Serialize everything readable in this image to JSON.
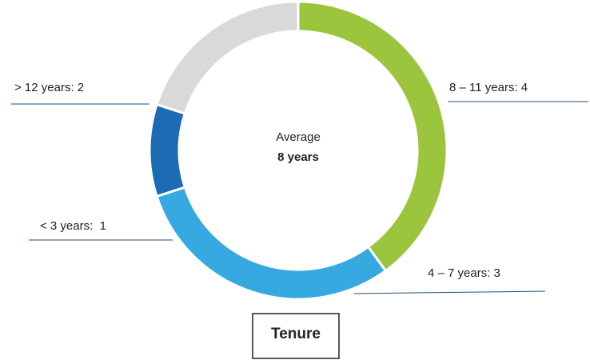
{
  "chart_data": {
    "type": "donut",
    "title": "Tenure",
    "center_label": "Average",
    "center_value": "8 years",
    "categories": [
      "8 – 11 years",
      "4 – 7 years",
      "< 3 years",
      "> 12 years"
    ],
    "values": [
      4,
      3,
      1,
      2
    ],
    "value_labels": [
      "8 – 11 years: 4",
      "4 – 7 years: 3",
      "< 3 years:  1",
      "> 12 years: 2"
    ],
    "colors": [
      "#9bc53d",
      "#36a9e1",
      "#1b6bb5",
      "#d9d9d9"
    ]
  }
}
